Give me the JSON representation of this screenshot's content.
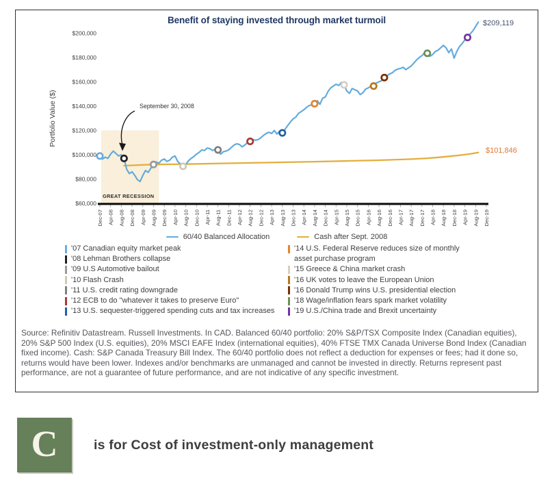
{
  "chart_data": {
    "type": "line",
    "title": "Benefit of staying invested through market turmoil",
    "xlabel": "",
    "ylabel": "Portfolio Value ($)",
    "ylim": [
      60000,
      200000
    ],
    "y_tick_labels": [
      "$200,000",
      "$180,000",
      "$160,000",
      "$140,000",
      "$120,000",
      "$100,000",
      "$80,000",
      "$60,000"
    ],
    "x_tick_labels": [
      "Dec-07",
      "Apr-08",
      "Aug-08",
      "Dec-08",
      "Apr-09",
      "Aug-09",
      "Dec-09",
      "Apr-10",
      "Aug-10",
      "Dec-10",
      "Apr-11",
      "Aug-11",
      "Dec-11",
      "Apr-12",
      "Aug-12",
      "Dec-12",
      "Apr-13",
      "Aug-13",
      "Dec-13",
      "Apr-14",
      "Aug-14",
      "Dec-14",
      "Apr-15",
      "Aug-15",
      "Dec-15",
      "Apr-16",
      "Aug-16",
      "Dec-16",
      "Apr-17",
      "Aug-17",
      "Dec-17",
      "Apr-18",
      "Aug-18",
      "Dec-18",
      "Apr-19",
      "Aug-19",
      "Dec-19"
    ],
    "x_unit": "months since Dec-2007 (tick every 4 months)",
    "annotation_label": "September 30, 2008",
    "recession_band": {
      "label": "GREAT RECESSION",
      "month_range": [
        0.5,
        22
      ],
      "color": "#F9EFDA"
    },
    "grid": false,
    "legend_position": "below plot",
    "series": [
      {
        "name": "60/40 Balanced Allocation",
        "color": "#63ABDC",
        "start_month": 0,
        "step_months": 1,
        "end_label": "$209,119",
        "end_label_color": "#44546A",
        "values": [
          99000,
          96500,
          98000,
          97000,
          100500,
          103000,
          101000,
          99000,
          100000,
          97000,
          88000,
          84500,
          86000,
          83000,
          79500,
          78000,
          83000,
          87000,
          85500,
          89000,
          92000,
          94000,
          93000,
          95500,
          96500,
          94500,
          95500,
          98000,
          99000,
          94500,
          92500,
          90500,
          92000,
          95000,
          97000,
          98500,
          100500,
          102000,
          104000,
          103500,
          105500,
          105000,
          103500,
          104500,
          104000,
          100500,
          102500,
          103000,
          104000,
          106000,
          108000,
          109000,
          108500,
          106500,
          108000,
          110000,
          111000,
          112500,
          112000,
          112500,
          114000,
          116000,
          117500,
          118500,
          117500,
          120000,
          117000,
          119500,
          118000,
          121000,
          124000,
          127000,
          129500,
          131000,
          134000,
          135500,
          137000,
          139000,
          140500,
          141000,
          142000,
          144500,
          141500,
          146500,
          147500,
          152000,
          155000,
          156500,
          158000,
          157000,
          159500,
          157500,
          152500,
          150500,
          154500,
          153500,
          152500,
          149500,
          151000,
          154000,
          155000,
          156500,
          156500,
          159000,
          160000,
          161000,
          163500,
          165000,
          166500,
          167500,
          169500,
          170500,
          171000,
          172000,
          170000,
          171500,
          173000,
          175500,
          178000,
          180000,
          181500,
          184000,
          183500,
          181000,
          182500,
          185000,
          186000,
          188000,
          190000,
          188000,
          184000,
          187000,
          179500,
          185000,
          189000,
          191500,
          194500,
          196500,
          199500,
          202000,
          205500,
          209119
        ]
      },
      {
        "name": "Cash after Sept. 2008",
        "color": "#E3AE3D",
        "end_label": "$101,846",
        "end_label_color": "#E0762F",
        "points": [
          [
            9,
            91000
          ],
          [
            14,
            91500
          ],
          [
            20,
            92000
          ],
          [
            32,
            92300
          ],
          [
            44,
            92800
          ],
          [
            56,
            93300
          ],
          [
            68,
            93800
          ],
          [
            80,
            94300
          ],
          [
            92,
            94900
          ],
          [
            104,
            95500
          ],
          [
            116,
            96400
          ],
          [
            122,
            97100
          ],
          [
            128,
            98200
          ],
          [
            134,
            99600
          ],
          [
            138,
            100700
          ],
          [
            141,
            101846
          ]
        ]
      }
    ],
    "end_values": {
      "balanced": 209119,
      "cash": 101846
    }
  },
  "series_legend": [
    {
      "label": "60/40 Balanced Allocation",
      "color": "#63ABDC"
    },
    {
      "label": "Cash after Sept. 2008",
      "color": "#E3AE3D"
    }
  ],
  "event_legend": {
    "left_column": [
      {
        "label": "'07 Canadian equity market peak",
        "color": "#6CACDE",
        "month": 0,
        "value": 99000
      },
      {
        "label": "'08 Lehman Brothers collapse",
        "color": "#231F20",
        "month": 9,
        "value": 97000
      },
      {
        "label": "'09 U.S Automotive bailout",
        "color": "#9A9A9A",
        "month": 20,
        "value": 92000
      },
      {
        "label": "'10 Flash Crash",
        "color": "#CFC8B5",
        "month": 31,
        "value": 90500
      },
      {
        "label": "'11 U.S. credit rating downgrade",
        "color": "#7F7F7F",
        "month": 44,
        "value": 104000
      },
      {
        "label": "'12 ECB to do \"whatever it takes to preserve Euro\"",
        "color": "#A63B32",
        "month": 56,
        "value": 111000
      },
      {
        "label": "'13 U.S. sequester-triggered spending cuts and tax increases",
        "color": "#2260A0",
        "month": 68,
        "value": 118000
      }
    ],
    "right_column": [
      {
        "label": "'14 U.S. Federal Reserve reduces size of monthly asset purchase program",
        "color": "#E0852F",
        "month": 80,
        "value": 142000
      },
      {
        "label": "'15 Greece & China market crash",
        "color": "#D6CFC2",
        "month": 91,
        "value": 157500
      },
      {
        "label": "'16 UK votes to leave the European Union",
        "color": "#B5781E",
        "month": 102,
        "value": 156500
      },
      {
        "label": "'16 Donald Trump wins U.S. presidential election",
        "color": "#7A3000",
        "month": 106,
        "value": 163500
      },
      {
        "label": "'18 Wage/inflation fears spark market volatility",
        "color": "#6E8F55",
        "month": 122,
        "value": 183500
      },
      {
        "label": "'19 U.S./China trade and Brexit uncertainty",
        "color": "#7435A0",
        "month": 137,
        "value": 196500
      }
    ]
  },
  "source_text": "Source: Refinitiv Datastream. Russell Investments. In CAD. Balanced 60/40 portfolio: 20% S&P/TSX Composite Index (Canadian equities), 20% S&P 500 Index (U.S. equities), 20% MSCI EAFE Index (international equities), 40% FTSE TMX Canada Universe Bond Index (Canadian fixed income). Cash: S&P Canada Treasury Bill Index. The 60/40 portfolio does not reflect a deduction for expenses or fees; had it done so, returns would have been lower. Indexes and/or benchmarks are unmanaged and cannot be invested in directly. Returns represent past performance, are not a guarantee of future performance, and are not indicative of any specific investment.",
  "footer": {
    "letter": "C",
    "text": "is for Cost of investment-only management",
    "tile_color": "#66805A"
  },
  "colors": {
    "title": "#1F3864",
    "panel_border": "#2E2E2E",
    "axis_text": "#3E3E3E",
    "recession_band": "#F9EFDA"
  }
}
